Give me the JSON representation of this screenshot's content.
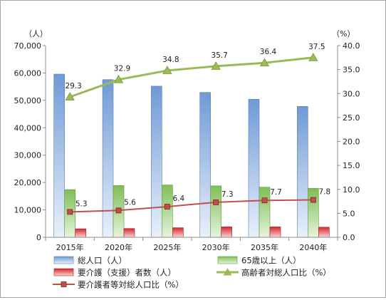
{
  "chart_data": {
    "type": "bar",
    "categories": [
      "2015年",
      "2020年",
      "2025年",
      "2030年",
      "2035年",
      "2040年"
    ],
    "left_axis": {
      "unit": "（人）",
      "ylim": [
        0,
        70000
      ],
      "ticks": [
        "0",
        "10,000",
        "20,000",
        "30,000",
        "40,000",
        "50,000",
        "60,000",
        "70,000"
      ]
    },
    "right_axis": {
      "unit": "（%）",
      "ylim": [
        0,
        40
      ],
      "ticks": [
        "0.0",
        "5.0",
        "10.0",
        "15.0",
        "20.0",
        "25.0",
        "30.0",
        "35.0",
        "40.0"
      ]
    },
    "grid": false,
    "legend_position": "bottom",
    "series": [
      {
        "name": "総人口（人）",
        "kind": "bar",
        "axis": "left",
        "values": [
          59600,
          57600,
          55200,
          52900,
          50400,
          47800
        ],
        "color": "#7da7d9"
      },
      {
        "name": "65歳以上（人）",
        "kind": "bar",
        "axis": "left",
        "values": [
          17400,
          18900,
          19100,
          18800,
          18300,
          17900
        ],
        "color": "#8cc168"
      },
      {
        "name": "要介護（支援）者数（人）",
        "kind": "bar",
        "axis": "left",
        "values": [
          3100,
          3200,
          3500,
          3800,
          3800,
          3700
        ],
        "color": "#e03030"
      },
      {
        "name": "高齢者対総人口比（%）",
        "kind": "line",
        "axis": "right",
        "values": [
          29.3,
          32.9,
          34.8,
          35.7,
          36.4,
          37.5
        ],
        "labels": [
          "29.3",
          "32.9",
          "34.8",
          "35.7",
          "36.4",
          "37.5"
        ],
        "color": "#9bbb59"
      },
      {
        "name": "要介護者等対総人口比（%）",
        "kind": "line",
        "axis": "right",
        "values": [
          5.3,
          5.6,
          6.4,
          7.3,
          7.7,
          7.8
        ],
        "labels": [
          "5.3",
          "5.6",
          "6.4",
          "7.3",
          "7.7",
          "7.8"
        ],
        "color": "#c0504d"
      }
    ]
  }
}
